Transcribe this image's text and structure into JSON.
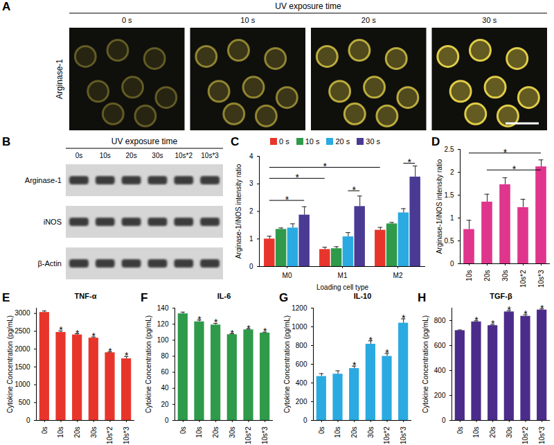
{
  "figure_panels": [
    {
      "panel": "A",
      "header": "UV exposure time",
      "columns": [
        "0 s",
        "10 s",
        "20 s",
        "30 s"
      ],
      "row_label": "Arginase-1"
    },
    {
      "panel": "B",
      "header": "UV exposure time",
      "lanes": [
        "0s",
        "10s",
        "20s",
        "30s",
        "10s*2",
        "10s*3"
      ],
      "rows": [
        "Arginase-1",
        "iNOS",
        "β-Actin"
      ]
    }
  ],
  "chart_data": [
    {
      "panel": "C",
      "type": "bar",
      "categories": [
        "M0",
        "M1",
        "M2"
      ],
      "x_label": "Loading cell type",
      "y_label": "Arginase-1/iNOS intensity ratio",
      "ylim": [
        0,
        4
      ],
      "yticks": [
        0,
        1,
        2,
        3,
        4
      ],
      "legend": "top",
      "series": [
        {
          "name": "0 s",
          "color": "#e8352b",
          "values": [
            1.0,
            0.62,
            1.32
          ],
          "errors": [
            0.1,
            0.08,
            0.1
          ]
        },
        {
          "name": "10 s",
          "color": "#2e9a4a",
          "values": [
            1.35,
            0.65,
            1.55
          ],
          "errors": [
            0.05,
            0.07,
            0.05
          ]
        },
        {
          "name": "20 s",
          "color": "#2aaae1",
          "values": [
            1.4,
            1.08,
            1.95
          ],
          "errors": [
            0.15,
            0.15,
            0.15
          ]
        },
        {
          "name": "30 s",
          "color": "#4b3a93",
          "values": [
            1.87,
            2.18,
            3.25
          ],
          "errors": [
            0.3,
            0.38,
            0.4
          ]
        }
      ],
      "brackets": [
        {
          "text": "*",
          "from": [
            "M0",
            "0 s"
          ],
          "to": [
            "M2",
            "0 s"
          ],
          "y": 3.6
        },
        {
          "text": "*",
          "from": [
            "M0",
            "0 s"
          ],
          "to": [
            "M1",
            "0 s"
          ],
          "y": 3.2
        },
        {
          "text": "*",
          "from": [
            "M0",
            "0 s"
          ],
          "to": [
            "M0",
            "30 s"
          ],
          "y": 2.4
        },
        {
          "text": "*",
          "from": [
            "M1",
            "20 s"
          ],
          "to": [
            "M1",
            "30 s"
          ],
          "y": 2.75
        },
        {
          "text": "*",
          "from": [
            "M2",
            "20 s"
          ],
          "to": [
            "M2",
            "30 s"
          ],
          "y": 3.75
        }
      ]
    },
    {
      "panel": "D",
      "type": "bar",
      "categories": [
        "10s",
        "20s",
        "30s",
        "10s*2",
        "10s*3"
      ],
      "y_label": "Arginase-1/iNOS intensity ratio",
      "color": "#e0358d",
      "values": [
        0.75,
        1.35,
        1.73,
        1.23,
        2.12
      ],
      "errors": [
        0.2,
        0.17,
        0.15,
        0.18,
        0.15
      ],
      "ylim": [
        0,
        2.5
      ],
      "yticks": [
        0,
        0.5,
        1,
        1.5,
        2,
        2.5
      ],
      "brackets": [
        {
          "text": "*",
          "from": "10s",
          "to": "10s*3",
          "y": 2.42
        },
        {
          "text": "*",
          "from": "20s",
          "to": "10s*3",
          "y": 2.05
        }
      ]
    },
    {
      "panel": "E",
      "type": "bar",
      "title": "TNF-α",
      "categories": [
        "0s",
        "10s",
        "20s",
        "30s",
        "10s*2",
        "10s*3"
      ],
      "y_label": "Cytokine Concentration (pg/mL)",
      "color": "#e8352b",
      "values": [
        3030,
        2470,
        2400,
        2310,
        1900,
        1730
      ],
      "errors": [
        40,
        40,
        30,
        30,
        20,
        60
      ],
      "significance": [
        null,
        "*",
        "*",
        "*",
        "*",
        "*"
      ],
      "ylim": [
        0,
        3150
      ],
      "yticks": [
        0,
        500,
        1000,
        1500,
        2000,
        2500,
        3000
      ]
    },
    {
      "panel": "F",
      "type": "bar",
      "title": "IL-6",
      "categories": [
        "0s",
        "10s",
        "20s",
        "30s",
        "10s*2",
        "10s*3"
      ],
      "y_label": "Cytokine Concentration (pg/mL)",
      "color": "#2e9a4a",
      "values": [
        133,
        123,
        119,
        107,
        113,
        109
      ],
      "errors": [
        2,
        2,
        2,
        1,
        1,
        1
      ],
      "significance": [
        null,
        "*",
        "*",
        "*",
        "*",
        "*"
      ],
      "ylim": [
        0,
        140
      ],
      "yticks": [
        0,
        20,
        40,
        60,
        80,
        100,
        120,
        140
      ]
    },
    {
      "panel": "G",
      "type": "bar",
      "title": "IL-10",
      "categories": [
        "0s",
        "10s",
        "20s",
        "30s",
        "10s*2",
        "10s*3"
      ],
      "y_label": "Cytokine Concentration (pg/mL)",
      "color": "#2aaae1",
      "values": [
        470,
        495,
        555,
        815,
        685,
        1040
      ],
      "errors": [
        30,
        35,
        25,
        35,
        30,
        45
      ],
      "significance": [
        null,
        null,
        "*",
        "*",
        "*",
        "*"
      ],
      "ylim": [
        0,
        1200
      ],
      "yticks": [
        0,
        200,
        400,
        600,
        800,
        1000,
        1200
      ]
    },
    {
      "panel": "H",
      "type": "bar",
      "title": "TGF-β",
      "categories": [
        "0s",
        "10s",
        "20s",
        "30s",
        "10s*2",
        "10s*3"
      ],
      "y_label": "Cytokine Concentration (pg/mL)",
      "color": "#4b2c8a",
      "values": [
        720,
        790,
        760,
        870,
        835,
        885
      ],
      "errors": [
        5,
        8,
        8,
        10,
        12,
        8
      ],
      "significance": [
        null,
        "*",
        "*",
        "*",
        "*",
        "*"
      ],
      "ylim": [
        0,
        900
      ],
      "yticks": [
        0,
        200,
        400,
        600,
        800
      ]
    }
  ]
}
